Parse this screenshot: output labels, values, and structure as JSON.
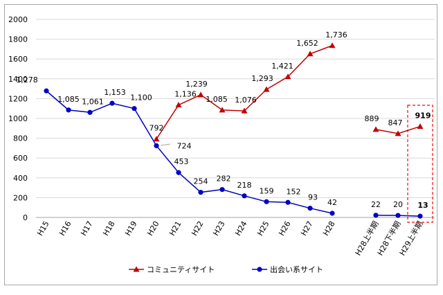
{
  "chart_data": {
    "type": "line",
    "categories": [
      "H15",
      "H16",
      "H17",
      "H18",
      "H19",
      "H20",
      "H21",
      "H22",
      "H23",
      "H24",
      "H25",
      "H26",
      "H27",
      "H28",
      "H28上半期",
      "H28下半期",
      "H29上半期"
    ],
    "ylim": [
      0,
      2000
    ],
    "yticks": [
      0,
      200,
      400,
      600,
      800,
      1000,
      1200,
      1400,
      1600,
      1800,
      2000
    ],
    "grid": true,
    "legend_position": "bottom",
    "series": [
      {
        "name": "コミュニティサイト",
        "color": "#c00000",
        "marker": "triangle",
        "x": [
          "H20",
          "H21",
          "H22",
          "H23",
          "H24",
          "H25",
          "H26",
          "H27",
          "H28"
        ],
        "values": [
          792,
          1136,
          1239,
          1085,
          1076,
          1293,
          1421,
          1652,
          1736
        ],
        "labels": [
          "792",
          "1,136",
          "1,239",
          "1,085",
          "1,076",
          "1,293",
          "1,421",
          "1,652",
          "1,736"
        ]
      },
      {
        "name": "コミュニティサイト",
        "color": "#c00000",
        "marker": "triangle",
        "x": [
          "H28上半期",
          "H28下半期",
          "H29上半期"
        ],
        "values": [
          889,
          847,
          919
        ],
        "labels": [
          "889",
          "847",
          "919"
        ]
      },
      {
        "name": "出会い系サイト",
        "color": "#0000c0",
        "marker": "circle",
        "x": [
          "H15",
          "H16",
          "H17",
          "H18",
          "H19",
          "H20",
          "H21",
          "H22",
          "H23",
          "H24",
          "H25",
          "H26",
          "H27",
          "H28"
        ],
        "values": [
          1278,
          1085,
          1061,
          1153,
          1100,
          724,
          453,
          254,
          282,
          218,
          159,
          152,
          93,
          42
        ],
        "labels": [
          "1,278",
          "1,085",
          "1,061",
          "1,153",
          "1,100",
          "724",
          "453",
          "254",
          "282",
          "218",
          "159",
          "152",
          "93",
          "42"
        ]
      },
      {
        "name": "出会い系サイト",
        "color": "#0000c0",
        "marker": "circle",
        "x": [
          "H28上半期",
          "H28下半期",
          "H29上半期"
        ],
        "values": [
          22,
          20,
          13
        ],
        "labels": [
          "22",
          "20",
          "13"
        ]
      }
    ],
    "highlight": {
      "category": "H29上半期",
      "color": "#ff0000",
      "label_colors": {
        "top": "#c00000",
        "bottom": "#00b0f0"
      }
    }
  },
  "legend": [
    {
      "label": "コミュニティサイト",
      "color": "#c00000",
      "marker": "triangle"
    },
    {
      "label": "出会い系サイト",
      "color": "#0000c0",
      "marker": "circle"
    }
  ]
}
